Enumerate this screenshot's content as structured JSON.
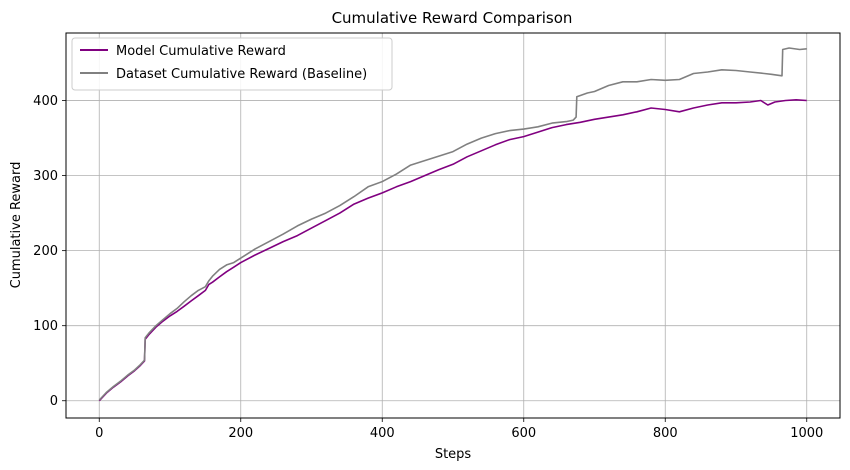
{
  "chart_data": {
    "type": "line",
    "title": "Cumulative Reward Comparison",
    "xlabel": "Steps",
    "ylabel": "Cumulative Reward",
    "xlim": [
      -47,
      1047
    ],
    "ylim": [
      -23,
      490
    ],
    "xticks": [
      0,
      200,
      400,
      600,
      800,
      1000
    ],
    "yticks": [
      0,
      100,
      200,
      300,
      400
    ],
    "grid": true,
    "legend_position": "top-left",
    "series": [
      {
        "name": "Model Cumulative Reward",
        "color": "#800080",
        "x": [
          0,
          10,
          20,
          30,
          40,
          50,
          58,
          64,
          65,
          70,
          80,
          90,
          100,
          110,
          120,
          130,
          140,
          150,
          155,
          160,
          170,
          180,
          190,
          200,
          220,
          240,
          260,
          280,
          300,
          320,
          340,
          360,
          380,
          400,
          420,
          440,
          460,
          480,
          500,
          520,
          540,
          560,
          580,
          600,
          620,
          640,
          660,
          680,
          700,
          720,
          740,
          760,
          780,
          800,
          820,
          840,
          860,
          880,
          900,
          920,
          935,
          945,
          955,
          970,
          985,
          1000
        ],
        "y": [
          0,
          10,
          18,
          25,
          33,
          40,
          47,
          53,
          82,
          88,
          98,
          106,
          113,
          119,
          126,
          133,
          140,
          147,
          155,
          158,
          165,
          172,
          178,
          184,
          194,
          203,
          212,
          220,
          230,
          240,
          250,
          262,
          270,
          277,
          285,
          292,
          300,
          308,
          315,
          325,
          333,
          341,
          348,
          352,
          358,
          364,
          368,
          371,
          375,
          378,
          381,
          385,
          390,
          388,
          385,
          390,
          394,
          397,
          397,
          398,
          400,
          394,
          398,
          400,
          401,
          400
        ]
      },
      {
        "name": "Dataset Cumulative Reward (Baseline)",
        "color": "#808080",
        "x": [
          0,
          10,
          20,
          30,
          40,
          50,
          58,
          64,
          65,
          70,
          80,
          90,
          100,
          110,
          120,
          130,
          140,
          150,
          155,
          160,
          170,
          180,
          190,
          200,
          220,
          240,
          260,
          280,
          300,
          320,
          340,
          360,
          380,
          400,
          420,
          440,
          460,
          480,
          500,
          520,
          540,
          560,
          580,
          600,
          620,
          640,
          660,
          670,
          674,
          675,
          690,
          700,
          720,
          740,
          760,
          780,
          800,
          820,
          840,
          860,
          880,
          900,
          920,
          940,
          950,
          965,
          966,
          975,
          990,
          1000
        ],
        "y": [
          1,
          11,
          19,
          26,
          34,
          41,
          48,
          54,
          84,
          90,
          100,
          108,
          116,
          123,
          132,
          140,
          147,
          152,
          160,
          166,
          175,
          181,
          184,
          190,
          202,
          212,
          222,
          233,
          242,
          250,
          260,
          272,
          285,
          292,
          302,
          314,
          320,
          326,
          332,
          342,
          350,
          356,
          360,
          362,
          365,
          370,
          372,
          374,
          378,
          405,
          410,
          412,
          420,
          425,
          425,
          428,
          427,
          428,
          436,
          438,
          441,
          440,
          438,
          436,
          435,
          433,
          468,
          470,
          468,
          469
        ]
      }
    ]
  }
}
